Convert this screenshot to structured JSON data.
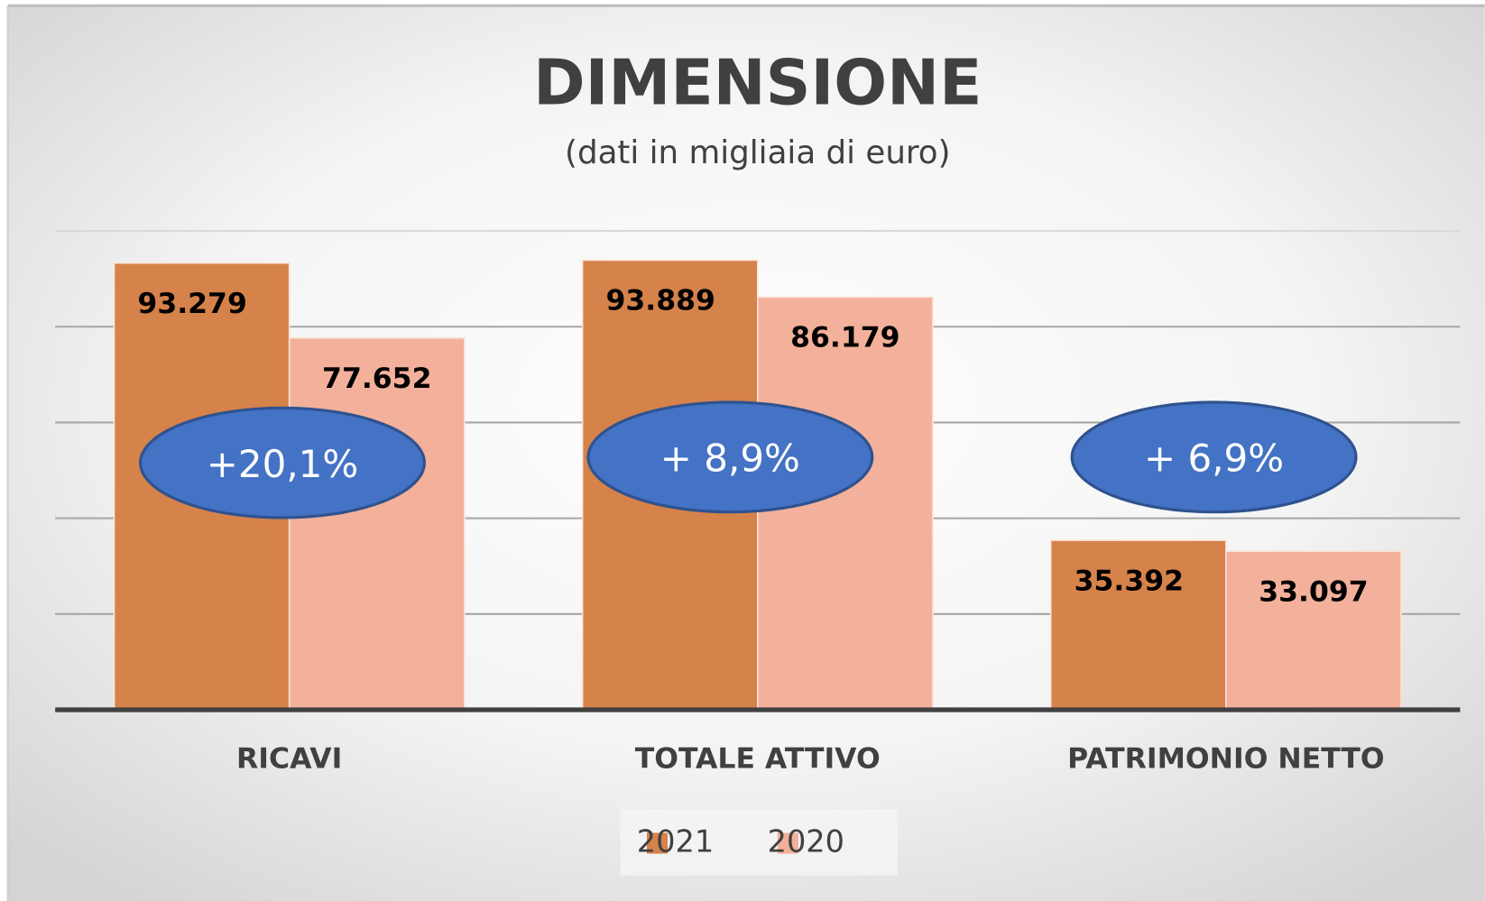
{
  "chart_data": {
    "type": "bar",
    "title": "DIMENSIONE",
    "subtitle": "(dati in migliaia di euro)",
    "categories": [
      "RICAVI",
      "TOTALE ATTIVO",
      "PATRIMONIO NETTO"
    ],
    "series": [
      {
        "name": "2021",
        "color": "#d6824b",
        "values": [
          93279,
          93889,
          35392
        ],
        "value_labels": [
          "93.279",
          "93.889",
          "35.392"
        ]
      },
      {
        "name": "2020",
        "color": "#f3b09a",
        "values": [
          77652,
          86179,
          33097
        ],
        "value_labels": [
          "77.652",
          "86.179",
          "33.097"
        ]
      }
    ],
    "annotations": [
      "+20,1%",
      "+ 8,9%",
      "+ 6,9%"
    ],
    "ylim": [
      0,
      100000
    ],
    "yticks": [
      0,
      20000,
      40000,
      60000,
      80000,
      100000
    ],
    "grid": true,
    "legend": "bottom"
  }
}
